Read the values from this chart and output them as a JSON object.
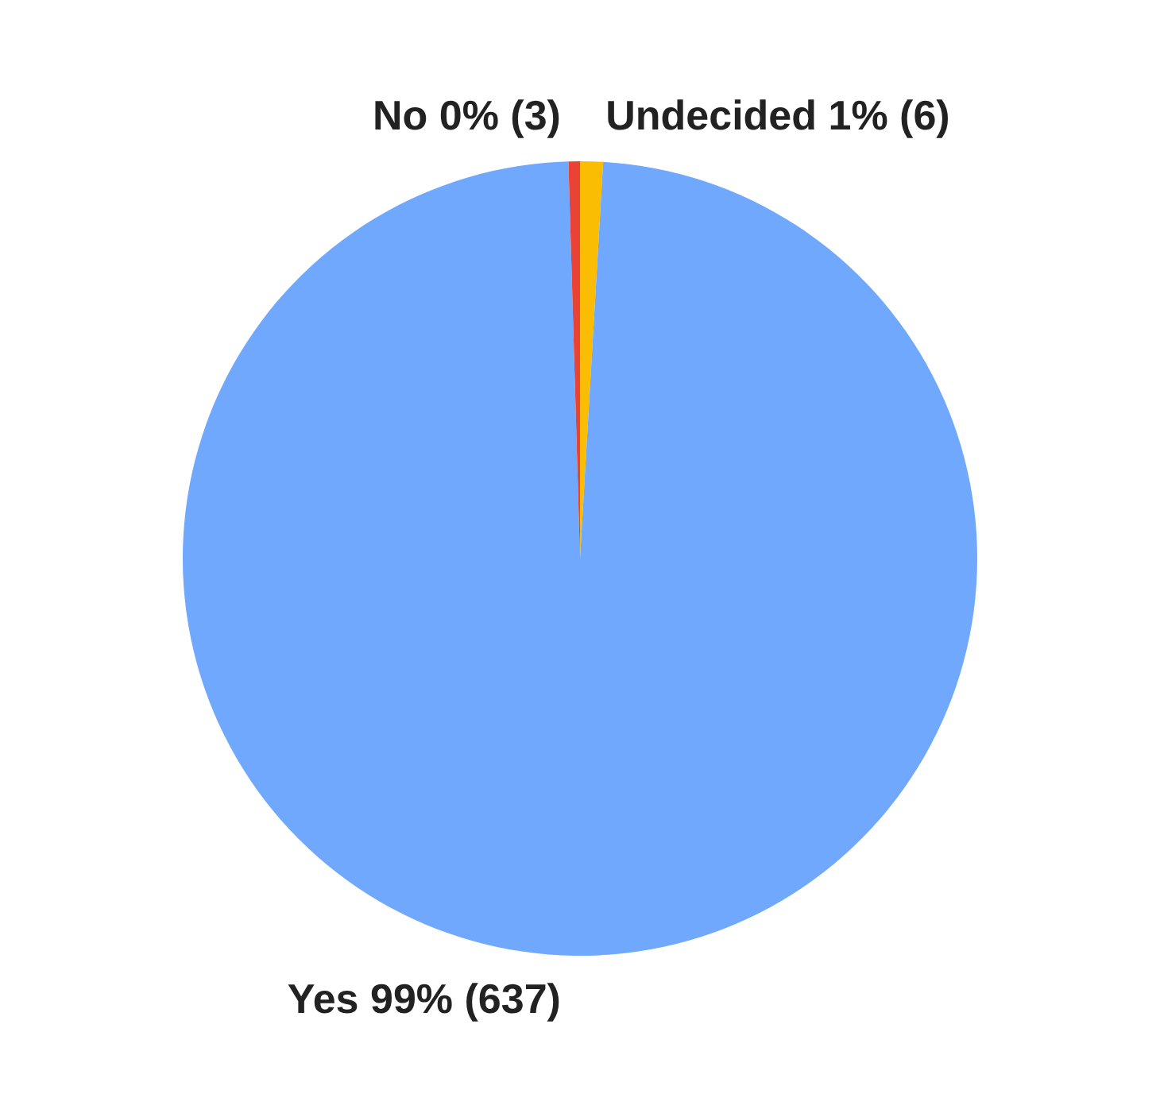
{
  "chart_data": {
    "type": "pie",
    "categories": [
      "Undecided",
      "Yes",
      "No"
    ],
    "values": [
      6,
      637,
      3
    ],
    "colors": [
      "#fbbc04",
      "#6fa8fc",
      "#ea4335"
    ],
    "value_labels": [
      "1% (6)",
      "99% (637)",
      "0% (3)"
    ]
  }
}
